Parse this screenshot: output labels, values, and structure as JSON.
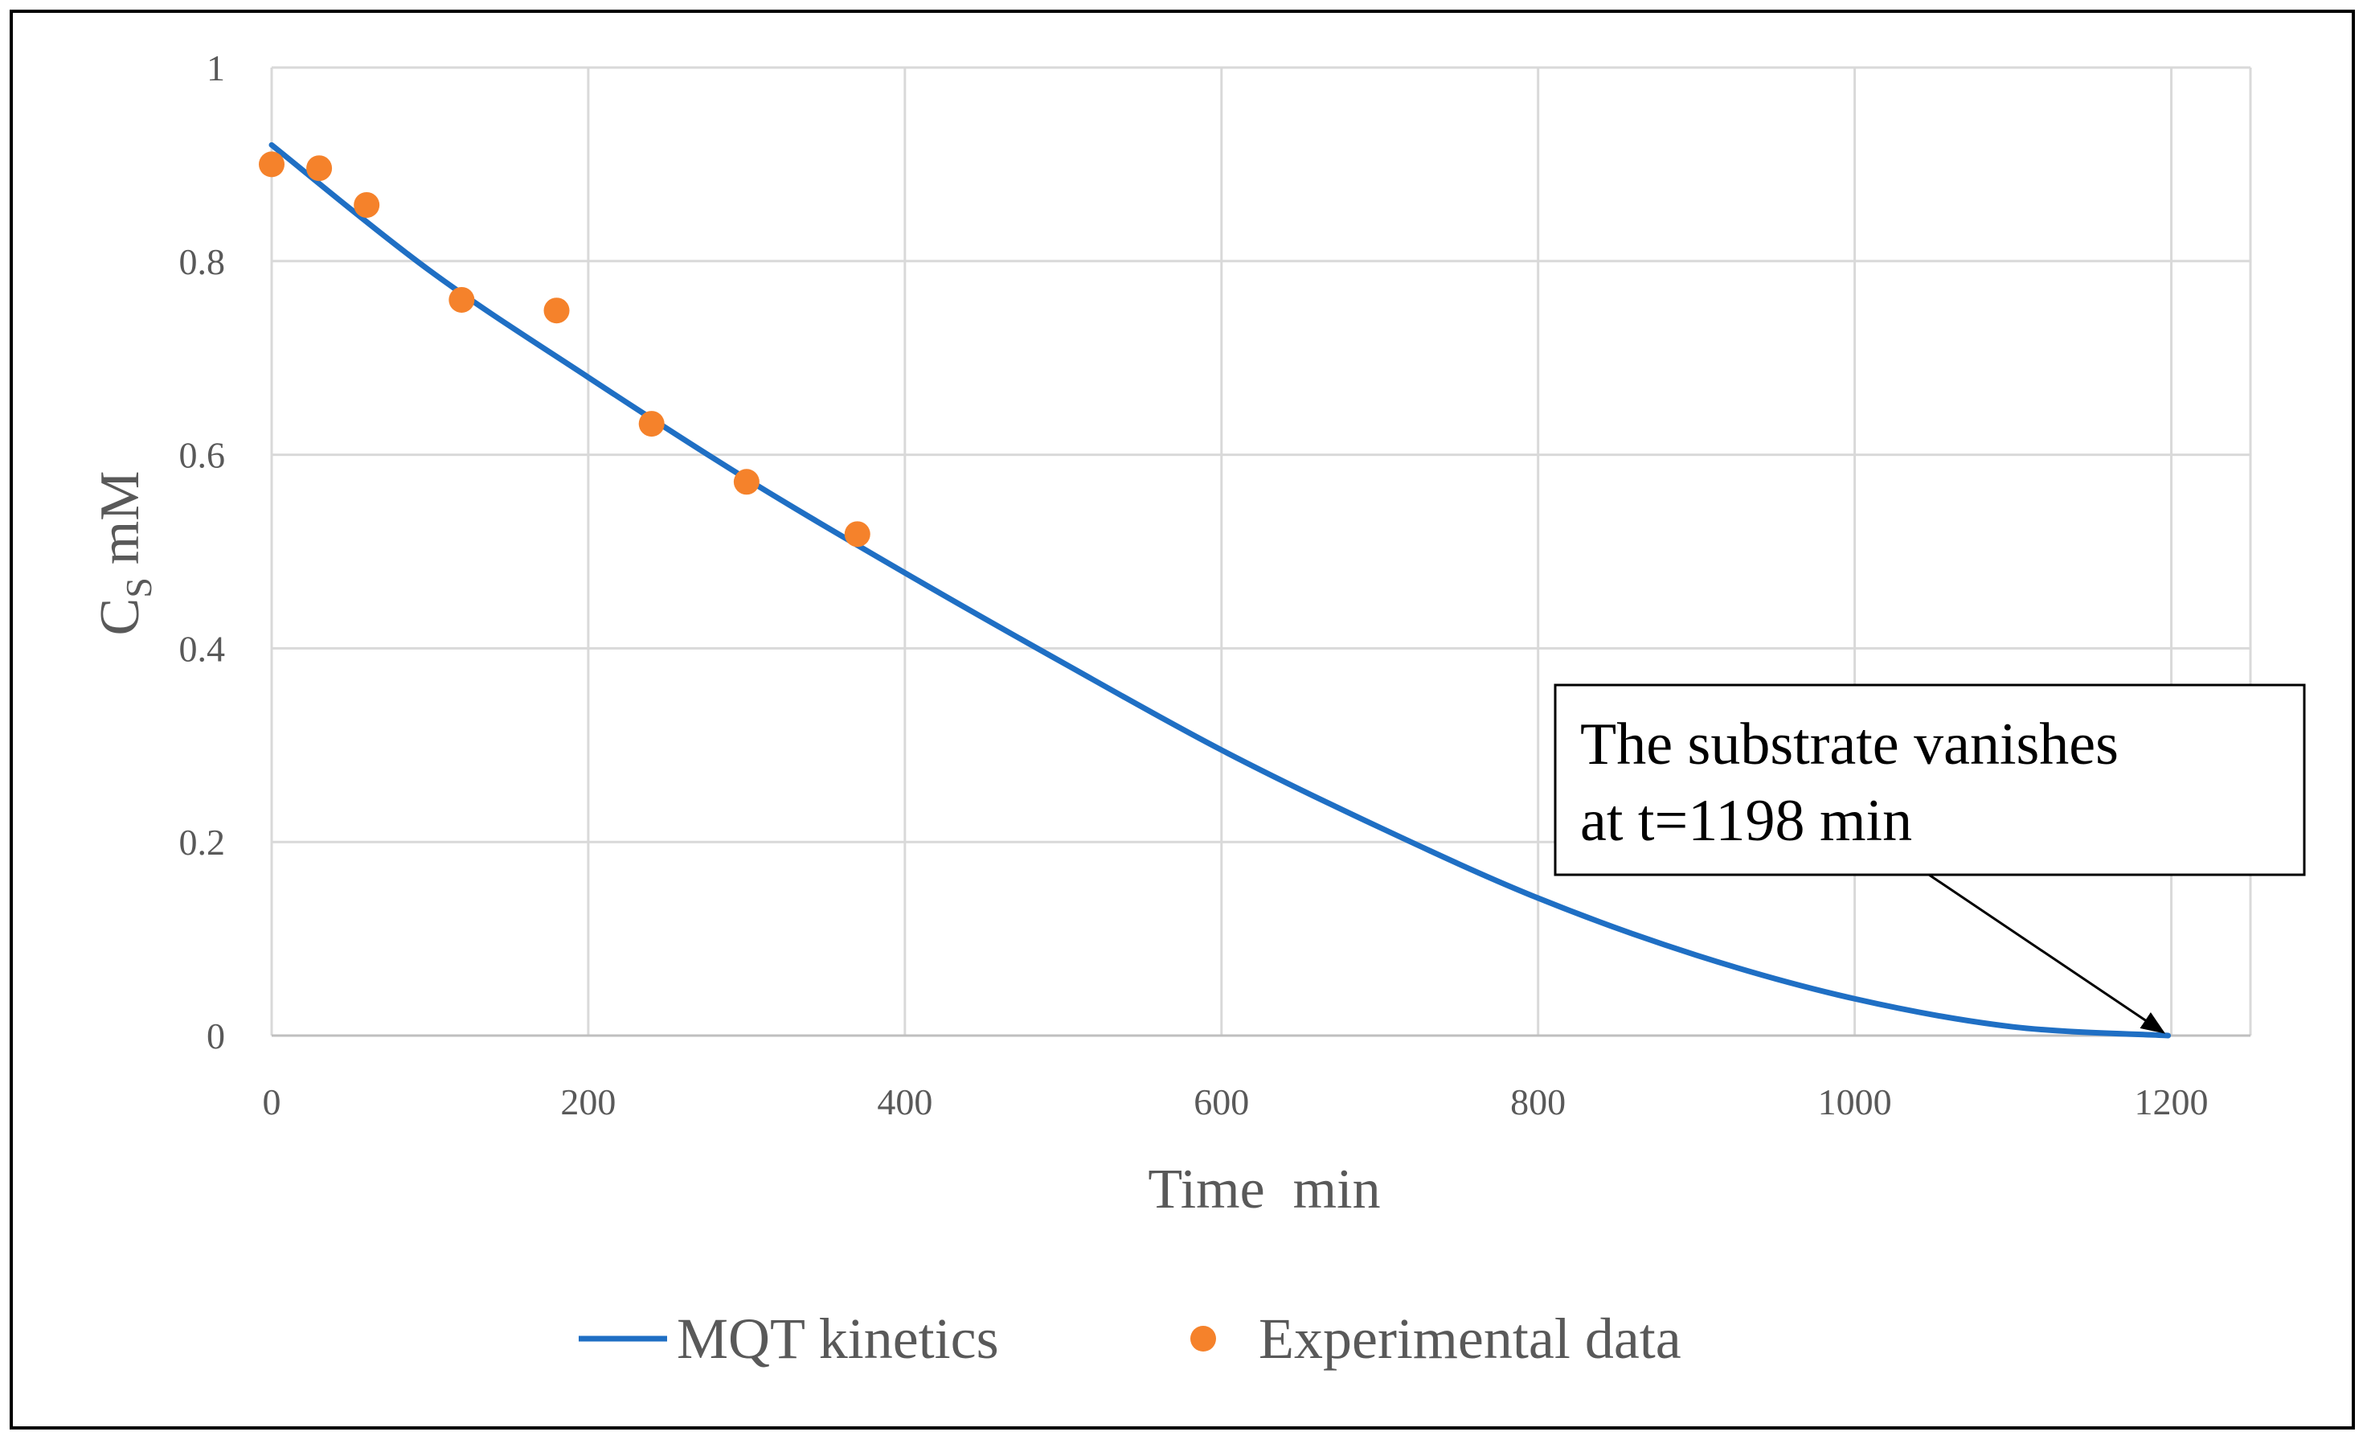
{
  "chart_data": {
    "type": "line",
    "title": "",
    "xlabel": "Time  min",
    "ylabel_main": "C",
    "ylabel_sub": "S",
    "ylabel_unit": "mM",
    "xlim": [
      0,
      1250
    ],
    "ylim": [
      0,
      1
    ],
    "xticks": [
      0,
      200,
      400,
      600,
      800,
      1000,
      1200
    ],
    "yticks": [
      0,
      0.2,
      0.4,
      0.6,
      0.8,
      1
    ],
    "xtick_labels": [
      "0",
      "200",
      "400",
      "600",
      "800",
      "1000",
      "1200"
    ],
    "ytick_labels": [
      "0",
      "0.2",
      "0.4",
      "0.6",
      "0.8",
      "1"
    ],
    "grid": true,
    "legend_position": "bottom",
    "series": [
      {
        "name": "MQT kinetics",
        "kind": "line",
        "color": "#1f6fc4",
        "x": [
          0,
          100,
          200,
          300,
          400,
          500,
          600,
          700,
          800,
          900,
          1000,
          1100,
          1198
        ],
        "y": [
          0.92,
          0.79,
          0.68,
          0.575,
          0.478,
          0.385,
          0.295,
          0.215,
          0.142,
          0.083,
          0.038,
          0.009,
          0
        ]
      },
      {
        "name": "Experimental data",
        "kind": "scatter",
        "color": "#f5822b",
        "x": [
          0,
          30,
          60,
          120,
          180,
          240,
          300,
          370
        ],
        "y": [
          0.9,
          0.896,
          0.858,
          0.76,
          0.749,
          0.632,
          0.572,
          0.518
        ]
      }
    ],
    "annotation": {
      "line1": "The substrate vanishes",
      "line2": "at t=1198 min",
      "target_x": 1198,
      "target_y": 0
    }
  }
}
